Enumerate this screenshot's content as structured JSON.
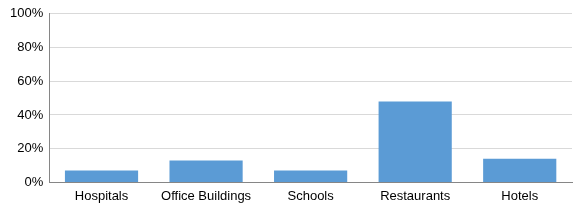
{
  "chart_data": {
    "type": "bar",
    "categories": [
      "Hospitals",
      "Office Buildings",
      "Schools",
      "Restaurants",
      "Hotels"
    ],
    "values": [
      7,
      13,
      7,
      48,
      14
    ],
    "color": "#5b9bd5",
    "ylim": [
      0,
      100
    ],
    "yticks": [
      {
        "value": 0,
        "label": "0%"
      },
      {
        "value": 20,
        "label": "20%"
      },
      {
        "value": 40,
        "label": "40%"
      },
      {
        "value": 60,
        "label": "60%"
      },
      {
        "value": 80,
        "label": "80%"
      },
      {
        "value": 100,
        "label": "100%"
      }
    ],
    "grid": true
  }
}
